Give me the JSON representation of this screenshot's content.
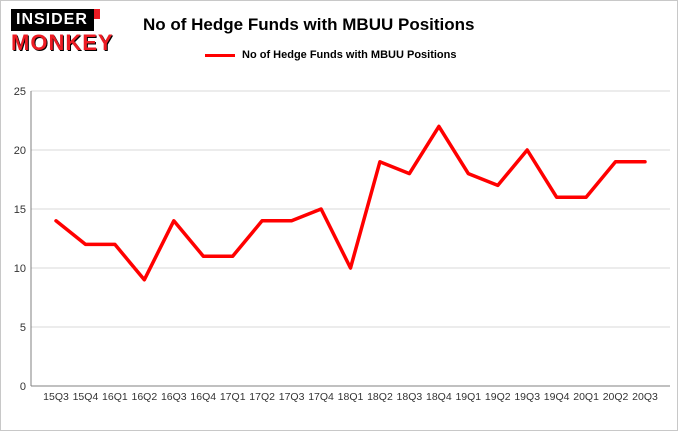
{
  "logo": {
    "line1": "INSIDER",
    "line2": "MONKEY"
  },
  "header": {
    "title": "No of Hedge Funds with MBUU Positions"
  },
  "legend": {
    "label": "No of Hedge Funds with MBUU Positions"
  },
  "colors": {
    "line": "#ff0000",
    "logo_red": "#ed1c24",
    "grid": "#d9d9d9",
    "axis": "#808080",
    "tick_text": "#333333"
  },
  "chart_data": {
    "type": "line",
    "title": "No of Hedge Funds with MBUU Positions",
    "categories": [
      "15Q3",
      "15Q4",
      "16Q1",
      "16Q2",
      "16Q3",
      "16Q4",
      "17Q1",
      "17Q2",
      "17Q3",
      "17Q4",
      "18Q1",
      "18Q2",
      "18Q3",
      "18Q4",
      "19Q1",
      "19Q2",
      "19Q3",
      "19Q4",
      "20Q1",
      "20Q2",
      "20Q3"
    ],
    "values": [
      14,
      12,
      12,
      9,
      14,
      11,
      11,
      14,
      14,
      15,
      10,
      19,
      18,
      22,
      18,
      17,
      20,
      16,
      16,
      19,
      19
    ],
    "xlabel": "",
    "ylabel": "",
    "ylim": [
      0,
      25
    ],
    "yticks": [
      0,
      5,
      10,
      15,
      20,
      25
    ],
    "grid": true,
    "legend_position": "top",
    "series_name": "No of Hedge Funds with MBUU Positions"
  }
}
